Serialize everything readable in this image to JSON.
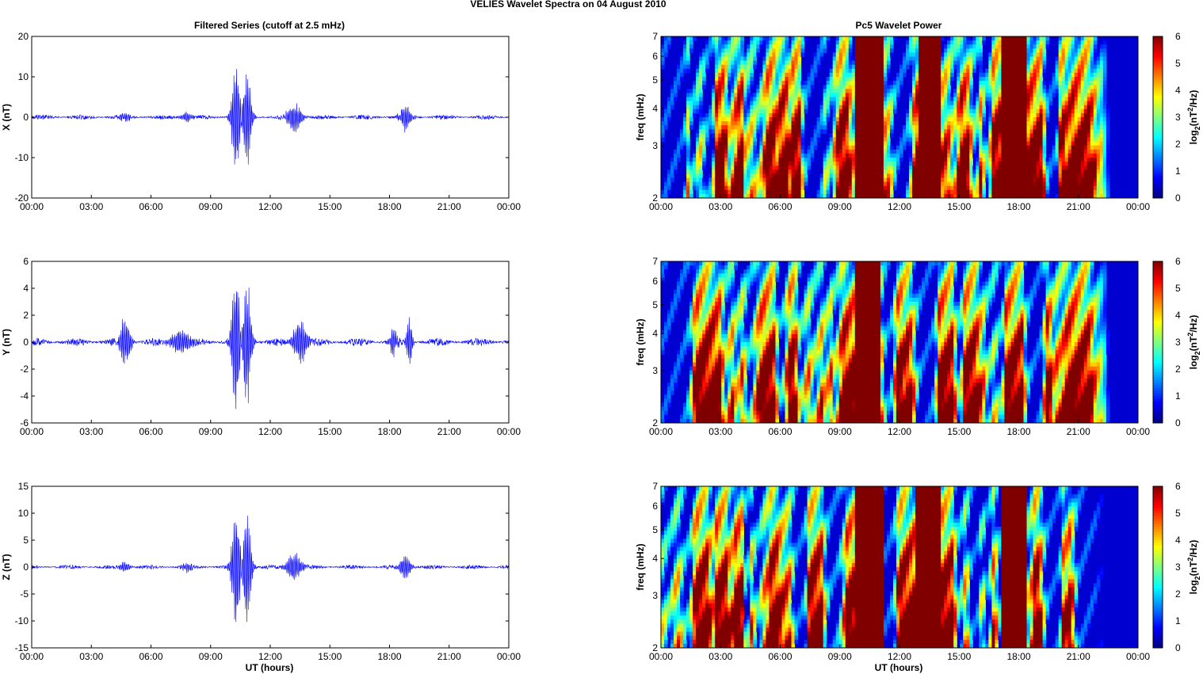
{
  "figure": {
    "suptitle": "VELIES Wavelet Spectra on 04 August    2010",
    "left_title": "Filtered Series (cutoff at 2.5 mHz)",
    "right_title": "Pc5 Wavelet Power",
    "xlabel": "UT (hours)",
    "time_ticks": [
      "00:00",
      "03:00",
      "06:00",
      "09:00",
      "12:00",
      "15:00",
      "18:00",
      "21:00",
      "00:00"
    ]
  },
  "chart_data": [
    {
      "type": "line",
      "component": "X",
      "ylabel": "X (nT)",
      "ylim": [
        -20,
        20
      ],
      "yticks": [
        20,
        10,
        0,
        -10,
        -20
      ],
      "xlim_hours": [
        0,
        24
      ],
      "line_color": "#0000ff",
      "noise_amplitude": 0.6,
      "bursts": [
        {
          "t": 4.7,
          "amp": 1.5,
          "w": 0.25
        },
        {
          "t": 7.8,
          "amp": 1.5,
          "w": 0.3
        },
        {
          "t": 10.3,
          "amp": 16,
          "w": 0.25
        },
        {
          "t": 10.8,
          "amp": 14,
          "w": 0.25
        },
        {
          "t": 13.2,
          "amp": 4,
          "w": 0.4
        },
        {
          "t": 18.8,
          "amp": 3.5,
          "w": 0.3
        }
      ]
    },
    {
      "type": "line",
      "component": "Y",
      "ylabel": "Y (nT)",
      "ylim": [
        -6,
        6
      ],
      "yticks": [
        6,
        4,
        2,
        0,
        -2,
        -4,
        -6
      ],
      "xlim_hours": [
        0,
        24
      ],
      "line_color": "#0000ff",
      "noise_amplitude": 0.3,
      "bursts": [
        {
          "t": 4.7,
          "amp": 2,
          "w": 0.3
        },
        {
          "t": 7.5,
          "amp": 1.2,
          "w": 0.5
        },
        {
          "t": 10.3,
          "amp": 5.8,
          "w": 0.25
        },
        {
          "t": 10.8,
          "amp": 5.5,
          "w": 0.25
        },
        {
          "t": 13.5,
          "amp": 1.8,
          "w": 0.4
        },
        {
          "t": 18.2,
          "amp": 1.2,
          "w": 0.2
        },
        {
          "t": 19.0,
          "amp": 2.5,
          "w": 0.15
        }
      ]
    },
    {
      "type": "line",
      "component": "Z",
      "ylabel": "Z (nT)",
      "ylim": [
        -15,
        15
      ],
      "yticks": [
        15,
        10,
        5,
        0,
        -5,
        -10,
        -15
      ],
      "xlim_hours": [
        0,
        24
      ],
      "line_color": "#0000ff",
      "noise_amplitude": 0.4,
      "bursts": [
        {
          "t": 4.7,
          "amp": 1.2,
          "w": 0.25
        },
        {
          "t": 7.8,
          "amp": 1.0,
          "w": 0.3
        },
        {
          "t": 10.3,
          "amp": 13,
          "w": 0.25
        },
        {
          "t": 10.8,
          "amp": 12.5,
          "w": 0.25
        },
        {
          "t": 13.2,
          "amp": 3,
          "w": 0.4
        },
        {
          "t": 18.8,
          "amp": 2.5,
          "w": 0.3
        }
      ]
    },
    {
      "type": "heatmap",
      "component": "X",
      "ylabel": "freq (mHz)",
      "yscale": "log",
      "ylim_mHz": [
        2,
        7
      ],
      "yticks": [
        7,
        6,
        5,
        4,
        3,
        2
      ],
      "xlim_hours": [
        0,
        24
      ],
      "colorbar_label": "log2(nT^2/Hz)",
      "colorbar_ticks": [
        6,
        5,
        4,
        3,
        2,
        1,
        0
      ],
      "clim": [
        0,
        6
      ],
      "colormap": "jet",
      "saturated_bands_hours": [
        [
          9.8,
          11.2
        ],
        [
          13.0,
          14.0
        ],
        [
          17.2,
          18.4
        ]
      ]
    },
    {
      "type": "heatmap",
      "component": "Y",
      "ylabel": "freq (mHz)",
      "yscale": "log",
      "ylim_mHz": [
        2,
        7
      ],
      "yticks": [
        7,
        6,
        5,
        4,
        3,
        2
      ],
      "xlim_hours": [
        0,
        24
      ],
      "colorbar_label": "log2(nT^2/Hz)",
      "colorbar_ticks": [
        6,
        5,
        4,
        3,
        2,
        1,
        0
      ],
      "clim": [
        0,
        6
      ],
      "colormap": "jet",
      "saturated_bands_hours": [
        [
          9.8,
          11.0
        ]
      ]
    },
    {
      "type": "heatmap",
      "component": "Z",
      "ylabel": "freq (mHz)",
      "yscale": "log",
      "ylim_mHz": [
        2,
        7
      ],
      "yticks": [
        7,
        6,
        5,
        4,
        3,
        2
      ],
      "xlim_hours": [
        0,
        24
      ],
      "colorbar_label": "log2(nT^2/Hz)",
      "colorbar_ticks": [
        6,
        5,
        4,
        3,
        2,
        1,
        0
      ],
      "clim": [
        0,
        6
      ],
      "colormap": "jet",
      "saturated_bands_hours": [
        [
          9.8,
          11.2
        ],
        [
          12.8,
          14.0
        ],
        [
          17.2,
          18.4
        ]
      ]
    }
  ]
}
